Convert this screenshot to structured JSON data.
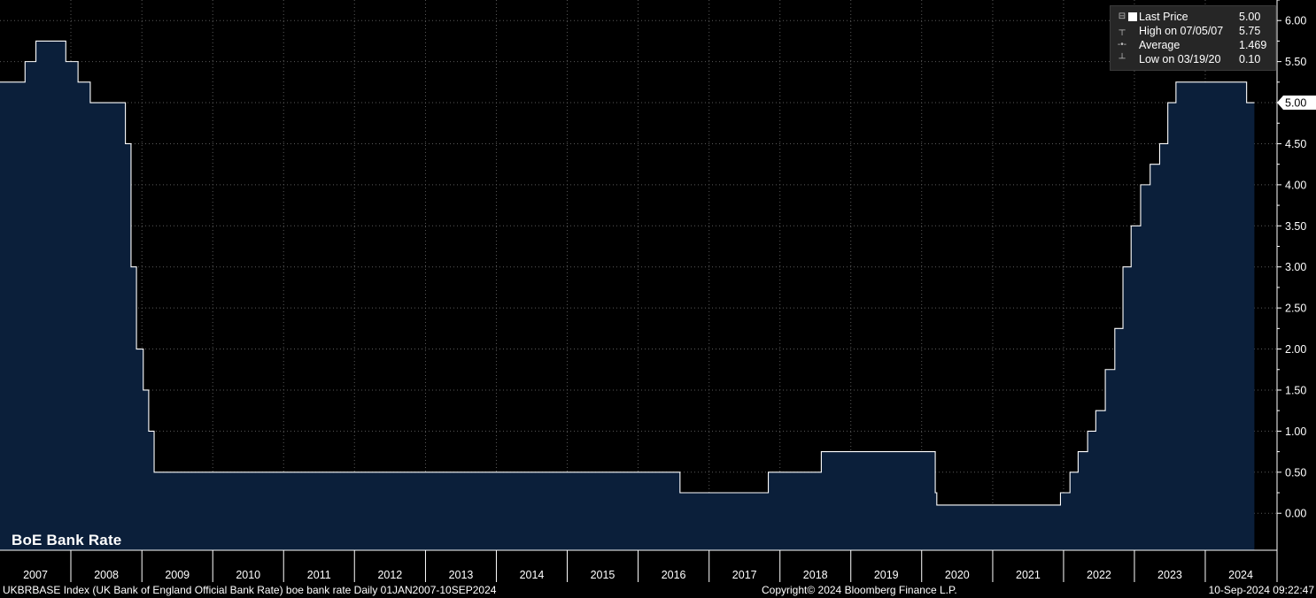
{
  "chart_data": {
    "type": "area",
    "title": "BoE Bank Rate",
    "series_name": "Last Price",
    "x_start": "2007-01-01",
    "x_end": "2024-09-10",
    "ylim": [
      -0.45,
      6.25
    ],
    "yticks": [
      0.0,
      0.5,
      1.0,
      1.5,
      2.0,
      2.5,
      3.0,
      3.5,
      4.0,
      4.5,
      5.0,
      5.5,
      6.0
    ],
    "ytick_labels": [
      "0.00",
      "0.50",
      "1.00",
      "1.50",
      "2.00",
      "2.50",
      "3.00",
      "3.50",
      "4.00",
      "4.50",
      "5.00",
      "5.50",
      "6.00"
    ],
    "year_labels": [
      "2007",
      "2008",
      "2009",
      "2010",
      "2011",
      "2012",
      "2013",
      "2014",
      "2015",
      "2016",
      "2017",
      "2018",
      "2019",
      "2020",
      "2021",
      "2022",
      "2023",
      "2024"
    ],
    "grid": true,
    "steps": [
      {
        "date": "2007-01-01",
        "rate": 5.25
      },
      {
        "date": "2007-05-10",
        "rate": 5.5
      },
      {
        "date": "2007-07-05",
        "rate": 5.75
      },
      {
        "date": "2007-12-06",
        "rate": 5.5
      },
      {
        "date": "2008-02-07",
        "rate": 5.25
      },
      {
        "date": "2008-04-10",
        "rate": 5.0
      },
      {
        "date": "2008-10-08",
        "rate": 4.5
      },
      {
        "date": "2008-11-06",
        "rate": 3.0
      },
      {
        "date": "2008-12-04",
        "rate": 2.0
      },
      {
        "date": "2009-01-08",
        "rate": 1.5
      },
      {
        "date": "2009-02-05",
        "rate": 1.0
      },
      {
        "date": "2009-03-05",
        "rate": 0.5
      },
      {
        "date": "2016-08-04",
        "rate": 0.25
      },
      {
        "date": "2017-11-02",
        "rate": 0.5
      },
      {
        "date": "2018-08-02",
        "rate": 0.75
      },
      {
        "date": "2020-03-11",
        "rate": 0.25
      },
      {
        "date": "2020-03-19",
        "rate": 0.1
      },
      {
        "date": "2021-12-16",
        "rate": 0.25
      },
      {
        "date": "2022-02-03",
        "rate": 0.5
      },
      {
        "date": "2022-03-17",
        "rate": 0.75
      },
      {
        "date": "2022-05-05",
        "rate": 1.0
      },
      {
        "date": "2022-06-16",
        "rate": 1.25
      },
      {
        "date": "2022-08-04",
        "rate": 1.75
      },
      {
        "date": "2022-09-22",
        "rate": 2.25
      },
      {
        "date": "2022-11-03",
        "rate": 3.0
      },
      {
        "date": "2022-12-15",
        "rate": 3.5
      },
      {
        "date": "2023-02-02",
        "rate": 4.0
      },
      {
        "date": "2023-03-23",
        "rate": 4.25
      },
      {
        "date": "2023-05-11",
        "rate": 4.5
      },
      {
        "date": "2023-06-22",
        "rate": 5.0
      },
      {
        "date": "2023-08-03",
        "rate": 5.25
      },
      {
        "date": "2024-08-01",
        "rate": 5.0
      }
    ],
    "last_value_label": "5.00",
    "colors": {
      "fill": "#0b1f3a",
      "line": "#ffffff",
      "background": "#000000",
      "grid": "#5a5a5a",
      "badge": "#ffffff"
    }
  },
  "legend": {
    "rows": [
      {
        "label": "Last Price",
        "value": "5.00",
        "icon": "square-icon"
      },
      {
        "label": "High on 07/05/07",
        "value": "5.75",
        "icon": "high-marker-icon"
      },
      {
        "label": "Average",
        "value": "1.469",
        "icon": "average-marker-icon"
      },
      {
        "label": "Low on 03/19/20",
        "value": "0.10",
        "icon": "low-marker-icon"
      }
    ]
  },
  "footer": {
    "left": "UKBRBASE Index (UK Bank of England Official Bank Rate) boe bank rate  Daily 01JAN2007-10SEP2024",
    "middle": "Copyright© 2024 Bloomberg Finance L.P.",
    "right": "10-Sep-2024 09:22:47"
  }
}
